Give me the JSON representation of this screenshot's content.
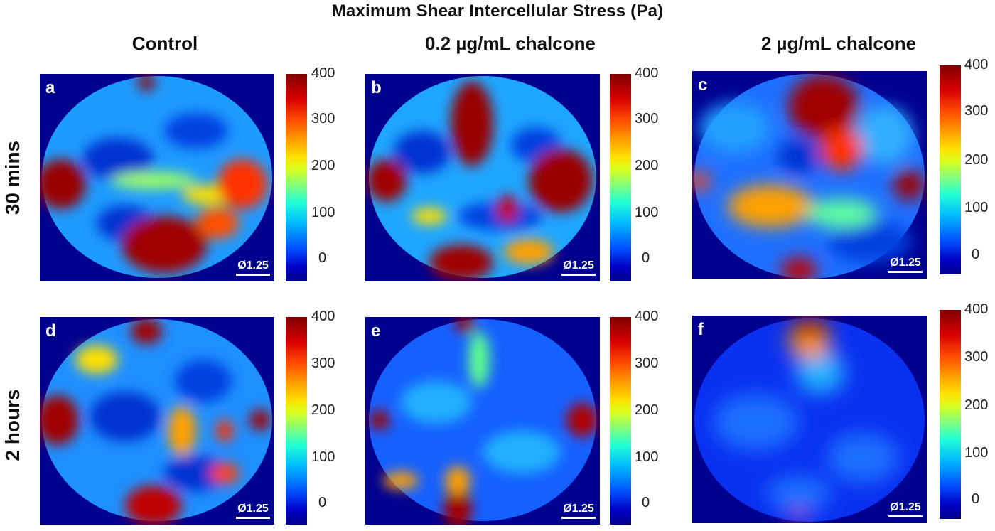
{
  "figure_title": "Maximum Shear Intercellular Stress (Pa)",
  "columns": [
    "Control",
    "0.2 µg/mL chalcone",
    "2 µg/mL chalcone"
  ],
  "rows": [
    "30 mins",
    "2 hours"
  ],
  "panels": [
    {
      "letter": "a",
      "scale": "Ø1.25"
    },
    {
      "letter": "b",
      "scale": "Ø1.25"
    },
    {
      "letter": "c",
      "scale": "Ø1.25"
    },
    {
      "letter": "d",
      "scale": "Ø1.25"
    },
    {
      "letter": "e",
      "scale": "Ø1.25"
    },
    {
      "letter": "f",
      "scale": "Ø1.25"
    }
  ],
  "colorbar_ticks": [
    "400",
    "300",
    "200",
    "100",
    "0"
  ]
}
